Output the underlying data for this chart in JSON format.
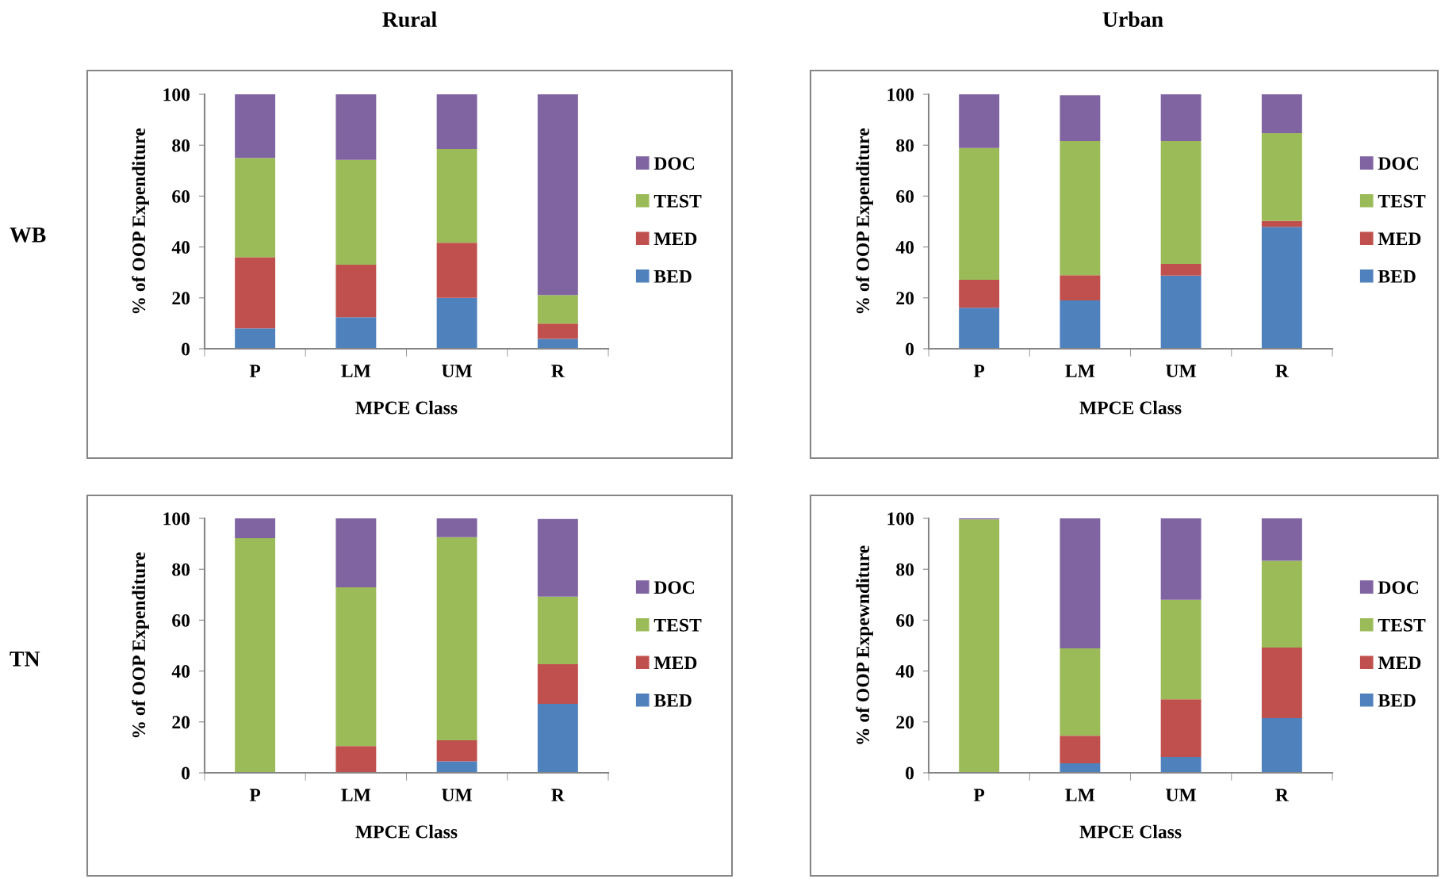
{
  "chart_data": [
    {
      "type": "bar",
      "stacked": true,
      "title": "Rural",
      "annotations": [
        "WB"
      ],
      "xlabel": "MPCE Class",
      "ylabel": "% of OOP Expenditure",
      "categories": [
        "P",
        "LM",
        "UM",
        "R"
      ],
      "ylim": [
        0,
        100
      ],
      "yticks": [
        0,
        20,
        40,
        60,
        80,
        100
      ],
      "legend": "right",
      "grid": false,
      "series": [
        {
          "name": "BED",
          "color": "#4f81bd",
          "values": [
            8,
            12.4,
            20,
            3.9
          ]
        },
        {
          "name": "MED",
          "color": "#c0504d",
          "values": [
            28,
            20.6,
            21.7,
            6
          ]
        },
        {
          "name": "TEST",
          "color": "#9bbb59",
          "values": [
            39,
            41.2,
            36.8,
            11.2
          ]
        },
        {
          "name": "DOC",
          "color": "#8064a2",
          "values": [
            25,
            25.8,
            21.5,
            78.9
          ]
        }
      ]
    },
    {
      "type": "bar",
      "stacked": true,
      "title": "Urban",
      "xlabel": "MPCE Class",
      "ylabel": "% of OOP Expenditure",
      "categories": [
        "P",
        "LM",
        "UM",
        "R"
      ],
      "ylim": [
        0,
        100
      ],
      "yticks": [
        0,
        20,
        40,
        60,
        80,
        100
      ],
      "legend": "right",
      "grid": false,
      "series": [
        {
          "name": "BED",
          "color": "#4f81bd",
          "values": [
            16.1,
            19,
            28.7,
            47.9
          ]
        },
        {
          "name": "MED",
          "color": "#c0504d",
          "values": [
            11,
            9.9,
            4.6,
            2.3
          ]
        },
        {
          "name": "TEST",
          "color": "#9bbb59",
          "values": [
            51.8,
            52.7,
            48.3,
            34.5
          ]
        },
        {
          "name": "DOC",
          "color": "#8064a2",
          "values": [
            21.1,
            18,
            18.4,
            15.3
          ]
        }
      ]
    },
    {
      "type": "bar",
      "stacked": true,
      "annotations": [
        "TN"
      ],
      "xlabel": "MPCE Class",
      "ylabel": "% of OOP Expenditure",
      "categories": [
        "P",
        "LM",
        "UM",
        "R"
      ],
      "ylim": [
        0,
        100
      ],
      "yticks": [
        0,
        20,
        40,
        60,
        80,
        100
      ],
      "legend": "right",
      "grid": false,
      "series": [
        {
          "name": "BED",
          "color": "#4f81bd",
          "values": [
            0,
            0,
            4.5,
            27.1
          ]
        },
        {
          "name": "MED",
          "color": "#c0504d",
          "values": [
            0,
            10.5,
            8.3,
            15.6
          ]
        },
        {
          "name": "TEST",
          "color": "#9bbb59",
          "values": [
            92.2,
            62.4,
            79.8,
            26.5
          ]
        },
        {
          "name": "DOC",
          "color": "#8064a2",
          "values": [
            7.8,
            27.1,
            7.4,
            30.6
          ]
        }
      ]
    },
    {
      "type": "bar",
      "stacked": true,
      "xlabel": "MPCE Class",
      "ylabel": "% of OOP Expewnditure",
      "categories": [
        "P",
        "LM",
        "UM",
        "R"
      ],
      "ylim": [
        0,
        100
      ],
      "yticks": [
        0,
        20,
        40,
        60,
        80,
        100
      ],
      "legend": "right",
      "grid": false,
      "series": [
        {
          "name": "BED",
          "color": "#4f81bd",
          "values": [
            0,
            3.7,
            6.2,
            21.5
          ]
        },
        {
          "name": "MED",
          "color": "#c0504d",
          "values": [
            0,
            10.9,
            22.7,
            27.7
          ]
        },
        {
          "name": "TEST",
          "color": "#9bbb59",
          "values": [
            99.6,
            34.3,
            39.1,
            34.1
          ]
        },
        {
          "name": "DOC",
          "color": "#8064a2",
          "values": [
            0.4,
            51.1,
            32,
            16.7
          ]
        }
      ]
    }
  ]
}
